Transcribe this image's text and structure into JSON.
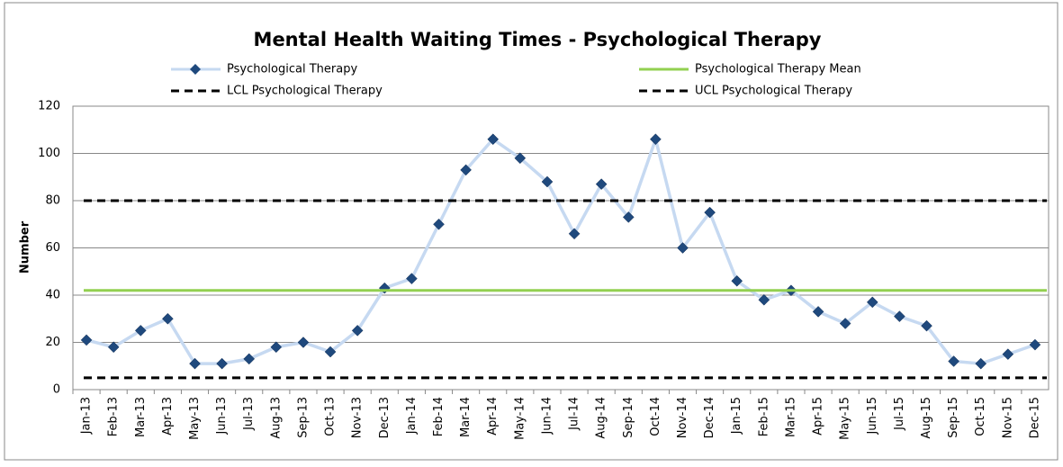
{
  "chart_data": {
    "type": "line",
    "title": "Mental Health Waiting Times - Psychological Therapy",
    "y_label": "Number",
    "categories": [
      "Jan-13",
      "Feb-13",
      "Mar-13",
      "Apr-13",
      "May-13",
      "Jun-13",
      "Jul-13",
      "Aug-13",
      "Sep-13",
      "Oct-13",
      "Nov-13",
      "Dec-13",
      "Jan-14",
      "Feb-14",
      "Mar-14",
      "Apr-14",
      "May-14",
      "Jun-14",
      "Jul-14",
      "Aug-14",
      "Sep-14",
      "Oct-14",
      "Nov-14",
      "Dec-14",
      "Jan-15",
      "Feb-15",
      "Mar-15",
      "Apr-15",
      "May-15",
      "Jun-15",
      "Jul-15",
      "Aug-15",
      "Sep-15",
      "Oct-15",
      "Nov-15",
      "Dec-15"
    ],
    "series": [
      {
        "name": "Psychological Therapy",
        "color": "#c6d9f1",
        "marker_color": "#1f497d",
        "values": [
          21,
          18,
          25,
          30,
          11,
          11,
          13,
          18,
          20,
          16,
          25,
          43,
          47,
          70,
          93,
          106,
          98,
          88,
          66,
          87,
          73,
          106,
          60,
          75,
          46,
          38,
          42,
          33,
          28,
          37,
          31,
          27,
          12,
          11,
          15,
          19
        ]
      },
      {
        "name": "Psychological Therapy Mean",
        "color": "#92d050",
        "value": 42,
        "dashed": false
      },
      {
        "name": "LCL Psychological Therapy",
        "color": "#000000",
        "value": 5,
        "dashed": true
      },
      {
        "name": "UCL Psychological Therapy",
        "color": "#000000",
        "value": 80,
        "dashed": true
      }
    ],
    "ylim": [
      0,
      120
    ],
    "yticks": [
      0,
      20,
      40,
      60,
      80,
      100,
      120
    ],
    "grid": true
  }
}
